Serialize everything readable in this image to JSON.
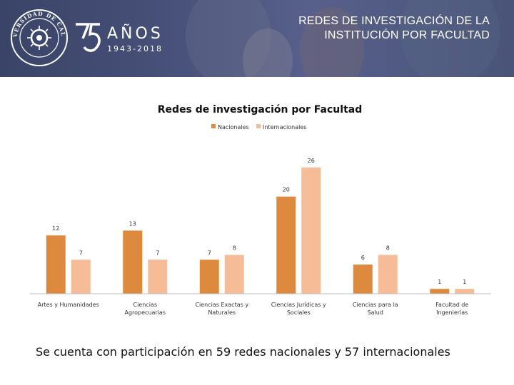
{
  "banner": {
    "title_line1": "REDES DE INVESTIGACIÓN DE LA",
    "title_line2": "INSTITUCIÓN POR FACULTAD",
    "seal_text": "UNIVERSIDAD DE CALDAS",
    "anniversary_word": "AÑOS",
    "anniversary_years": "1943-2018",
    "background_color": "#48527a"
  },
  "chart_data": {
    "type": "bar",
    "title": "Redes de investigación por Facultad",
    "legend_position": "top-center",
    "categories": [
      "Artes y Humanidades",
      "Ciencias Agropecuarias",
      "Ciencias Exactas y Naturales",
      "Ciencias Jurídicas y Sociales",
      "Ciencias para la Salud",
      "Facultad de Ingenierías"
    ],
    "series": [
      {
        "name": "Nacionales",
        "color": "#dd8a3e",
        "values": [
          12,
          13,
          7,
          20,
          6,
          1
        ]
      },
      {
        "name": "Internacionales",
        "color": "#f6bc98",
        "values": [
          7,
          7,
          8,
          26,
          8,
          1
        ]
      }
    ],
    "ylim": [
      0,
      27
    ],
    "xlabel": "",
    "ylabel": ""
  },
  "summary": "Se cuenta con participación en 59 redes nacionales y 57 internacionales"
}
